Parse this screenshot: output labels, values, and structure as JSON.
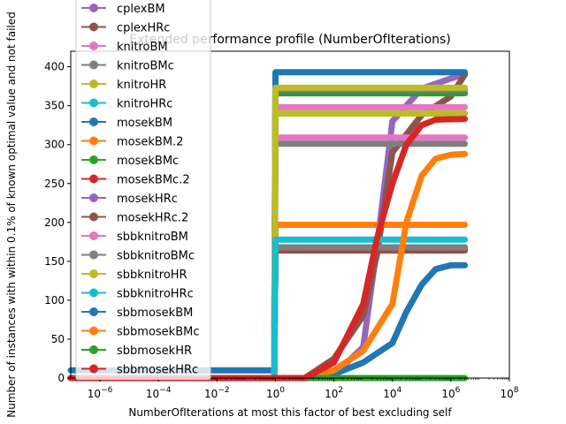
{
  "chart_data": {
    "type": "line",
    "title": "Extended performance profile (NumberOfIterations)",
    "xlabel": "NumberOfIterations at most this factor of best excluding self",
    "ylabel": "Number of instances with within 0.1% of known optimal value and not failed",
    "xscale": "log",
    "xlim": [
      1e-07,
      100000000.0
    ],
    "ylim": [
      0,
      420
    ],
    "x_ticks": [
      {
        "value": 1e-06,
        "base": "10",
        "exp": "−6"
      },
      {
        "value": 0.0001,
        "base": "10",
        "exp": "−4"
      },
      {
        "value": 0.01,
        "base": "10",
        "exp": "−2"
      },
      {
        "value": 1,
        "base": "10",
        "exp": "0"
      },
      {
        "value": 100,
        "base": "10",
        "exp": "2"
      },
      {
        "value": 10000,
        "base": "10",
        "exp": "4"
      },
      {
        "value": 1000000,
        "base": "10",
        "exp": "6"
      },
      {
        "value": 100000000,
        "base": "10",
        "exp": "8"
      }
    ],
    "y_ticks": [
      0,
      50,
      100,
      150,
      200,
      250,
      300,
      350,
      400
    ],
    "legend_position": "top-left",
    "series": [
      {
        "name": "cplexBM",
        "color": "#9467bd",
        "points": [
          [
            1e-07,
            0
          ],
          [
            0.9,
            0
          ],
          [
            1,
            0
          ],
          [
            10,
            0
          ],
          [
            100,
            4
          ],
          [
            1000,
            40
          ],
          [
            3000,
            170
          ],
          [
            10000,
            330
          ],
          [
            100000,
            372
          ],
          [
            1000000,
            385
          ],
          [
            3000000,
            391
          ]
        ]
      },
      {
        "name": "cplexHRc",
        "color": "#8c564b",
        "points": [
          [
            1e-07,
            0
          ],
          [
            0.9,
            0
          ],
          [
            1,
            0
          ],
          [
            10,
            0
          ],
          [
            100,
            25
          ],
          [
            1000,
            80
          ],
          [
            3000,
            160
          ],
          [
            10000,
            290
          ],
          [
            100000,
            338
          ],
          [
            1000000,
            362
          ],
          [
            3000000,
            390
          ]
        ]
      },
      {
        "name": "knitroBM",
        "color": "#e377c2",
        "points": [
          [
            1e-07,
            0
          ],
          [
            0.9,
            0
          ],
          [
            1,
            309
          ],
          [
            3000000,
            309
          ]
        ]
      },
      {
        "name": "knitroBMc",
        "color": "#7f7f7f",
        "points": [
          [
            1e-07,
            0
          ],
          [
            0.9,
            0
          ],
          [
            1,
            301
          ],
          [
            3000000,
            301
          ]
        ]
      },
      {
        "name": "knitroHR",
        "color": "#bcbd22",
        "points": [
          [
            1e-07,
            0
          ],
          [
            0.9,
            0
          ],
          [
            1,
            340
          ],
          [
            3000000,
            340
          ]
        ]
      },
      {
        "name": "knitroHRc",
        "color": "#17becf",
        "points": [
          [
            1e-07,
            0
          ],
          [
            0.9,
            0
          ],
          [
            1,
            168
          ],
          [
            3000000,
            168
          ]
        ]
      },
      {
        "name": "mosekBM",
        "color": "#1f77b4",
        "points": [
          [
            1e-07,
            10
          ],
          [
            0.9,
            10
          ],
          [
            1,
            393
          ],
          [
            3000000,
            393
          ]
        ]
      },
      {
        "name": "mosekBM.2",
        "color": "#ff7f0e",
        "points": [
          [
            1e-07,
            0
          ],
          [
            0.9,
            0
          ],
          [
            1,
            197
          ],
          [
            3000000,
            197
          ]
        ]
      },
      {
        "name": "mosekBMc",
        "color": "#2ca02c",
        "points": [
          [
            1e-07,
            0
          ],
          [
            0.9,
            0
          ],
          [
            1,
            366
          ],
          [
            3000000,
            366
          ]
        ]
      },
      {
        "name": "mosekBMc.2",
        "color": "#d62728",
        "points": [
          [
            1e-07,
            0
          ],
          [
            0.9,
            0
          ],
          [
            1,
            164
          ],
          [
            3000000,
            164
          ]
        ]
      },
      {
        "name": "mosekHRc",
        "color": "#9467bd",
        "points": [
          [
            1e-07,
            0
          ],
          [
            0.9,
            0
          ],
          [
            1,
            371
          ],
          [
            3000000,
            371
          ]
        ]
      },
      {
        "name": "mosekHRc.2",
        "color": "#8c564b",
        "points": [
          [
            1e-07,
            0
          ],
          [
            0.9,
            0
          ],
          [
            1,
            165
          ],
          [
            3000000,
            165
          ]
        ]
      },
      {
        "name": "sbbknitroBM",
        "color": "#e377c2",
        "points": [
          [
            1e-07,
            0
          ],
          [
            0.9,
            0
          ],
          [
            1,
            348
          ],
          [
            3000000,
            348
          ]
        ]
      },
      {
        "name": "sbbknitroBMc",
        "color": "#7f7f7f",
        "points": [
          [
            1e-07,
            0
          ],
          [
            0.9,
            0
          ],
          [
            1,
            168
          ],
          [
            3000000,
            168
          ]
        ]
      },
      {
        "name": "sbbknitroHR",
        "color": "#bcbd22",
        "points": [
          [
            1e-07,
            0
          ],
          [
            0.9,
            0
          ],
          [
            1,
            373
          ],
          [
            3000000,
            373
          ]
        ]
      },
      {
        "name": "sbbknitroHRc",
        "color": "#17becf",
        "points": [
          [
            1e-07,
            0
          ],
          [
            0.9,
            0
          ],
          [
            1,
            178
          ],
          [
            3000000,
            178
          ]
        ]
      },
      {
        "name": "sbbmosekBM",
        "color": "#1f77b4",
        "points": [
          [
            1e-07,
            0
          ],
          [
            10,
            0
          ],
          [
            100,
            5
          ],
          [
            1000,
            20
          ],
          [
            10000,
            45
          ],
          [
            30000,
            85
          ],
          [
            100000,
            120
          ],
          [
            300000,
            140
          ],
          [
            1000000,
            145
          ],
          [
            3000000,
            145
          ]
        ]
      },
      {
        "name": "sbbmosekBMc",
        "color": "#ff7f0e",
        "points": [
          [
            1e-07,
            0
          ],
          [
            10,
            0
          ],
          [
            100,
            10
          ],
          [
            1000,
            35
          ],
          [
            10000,
            95
          ],
          [
            30000,
            200
          ],
          [
            100000,
            260
          ],
          [
            300000,
            282
          ],
          [
            1000000,
            287
          ],
          [
            3000000,
            288
          ]
        ]
      },
      {
        "name": "sbbmosekHR",
        "color": "#2ca02c",
        "points": [
          [
            1e-07,
            0
          ],
          [
            3000000,
            0
          ]
        ]
      },
      {
        "name": "sbbmosekHRc",
        "color": "#d62728",
        "points": [
          [
            1e-07,
            0
          ],
          [
            10,
            0
          ],
          [
            100,
            20
          ],
          [
            1000,
            95
          ],
          [
            3000,
            180
          ],
          [
            10000,
            250
          ],
          [
            30000,
            300
          ],
          [
            100000,
            325
          ],
          [
            300000,
            332
          ],
          [
            3000000,
            333
          ]
        ]
      }
    ]
  }
}
